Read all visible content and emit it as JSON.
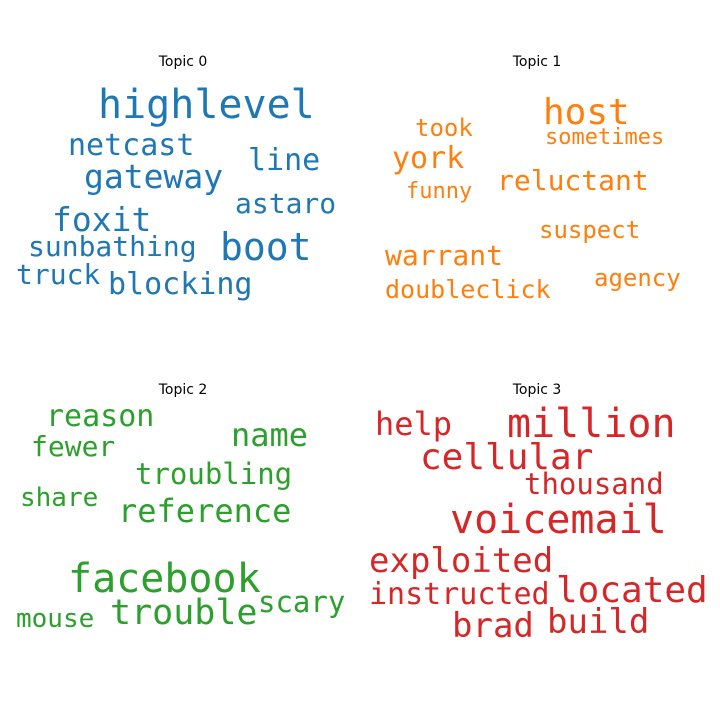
{
  "chart_data": [
    {
      "type": "wordcloud",
      "title": "Topic 0",
      "color": "#1f77b4",
      "words": [
        {
          "text": "highlevel",
          "weight": 1.0
        },
        {
          "text": "boot",
          "weight": 0.95
        },
        {
          "text": "gateway",
          "weight": 0.82
        },
        {
          "text": "foxit",
          "weight": 0.82
        },
        {
          "text": "netcast",
          "weight": 0.74
        },
        {
          "text": "line",
          "weight": 0.74
        },
        {
          "text": "blocking",
          "weight": 0.74
        },
        {
          "text": "astaro",
          "weight": 0.7
        },
        {
          "text": "sunbathing",
          "weight": 0.7
        },
        {
          "text": "truck",
          "weight": 0.7
        }
      ]
    },
    {
      "type": "wordcloud",
      "title": "Topic 1",
      "color": "#ff7f0e",
      "words": [
        {
          "text": "host",
          "weight": 1.0
        },
        {
          "text": "york",
          "weight": 0.82
        },
        {
          "text": "reluctant",
          "weight": 0.78
        },
        {
          "text": "warrant",
          "weight": 0.78
        },
        {
          "text": "doubleclick",
          "weight": 0.7
        },
        {
          "text": "took",
          "weight": 0.66
        },
        {
          "text": "sometimes",
          "weight": 0.62
        },
        {
          "text": "suspect",
          "weight": 0.66
        },
        {
          "text": "agency",
          "weight": 0.66
        },
        {
          "text": "funny",
          "weight": 0.6
        }
      ]
    },
    {
      "type": "wordcloud",
      "title": "Topic 2",
      "color": "#2ca02c",
      "words": [
        {
          "text": "facebook",
          "weight": 1.0
        },
        {
          "text": "trouble",
          "weight": 0.88
        },
        {
          "text": "reference",
          "weight": 0.8
        },
        {
          "text": "name",
          "weight": 0.8
        },
        {
          "text": "reason",
          "weight": 0.74
        },
        {
          "text": "troubling",
          "weight": 0.72
        },
        {
          "text": "scary",
          "weight": 0.72
        },
        {
          "text": "fewer",
          "weight": 0.7
        },
        {
          "text": "share",
          "weight": 0.66
        },
        {
          "text": "mouse",
          "weight": 0.66
        }
      ]
    },
    {
      "type": "wordcloud",
      "title": "Topic 3",
      "color": "#d62728",
      "words": [
        {
          "text": "million",
          "weight": 1.0
        },
        {
          "text": "voicemail",
          "weight": 1.0
        },
        {
          "text": "cellular",
          "weight": 0.9
        },
        {
          "text": "located",
          "weight": 0.9
        },
        {
          "text": "exploited",
          "weight": 0.86
        },
        {
          "text": "brad",
          "weight": 0.86
        },
        {
          "text": "build",
          "weight": 0.86
        },
        {
          "text": "help",
          "weight": 0.8
        },
        {
          "text": "instructed",
          "weight": 0.74
        },
        {
          "text": "thousand",
          "weight": 0.72
        }
      ]
    }
  ]
}
